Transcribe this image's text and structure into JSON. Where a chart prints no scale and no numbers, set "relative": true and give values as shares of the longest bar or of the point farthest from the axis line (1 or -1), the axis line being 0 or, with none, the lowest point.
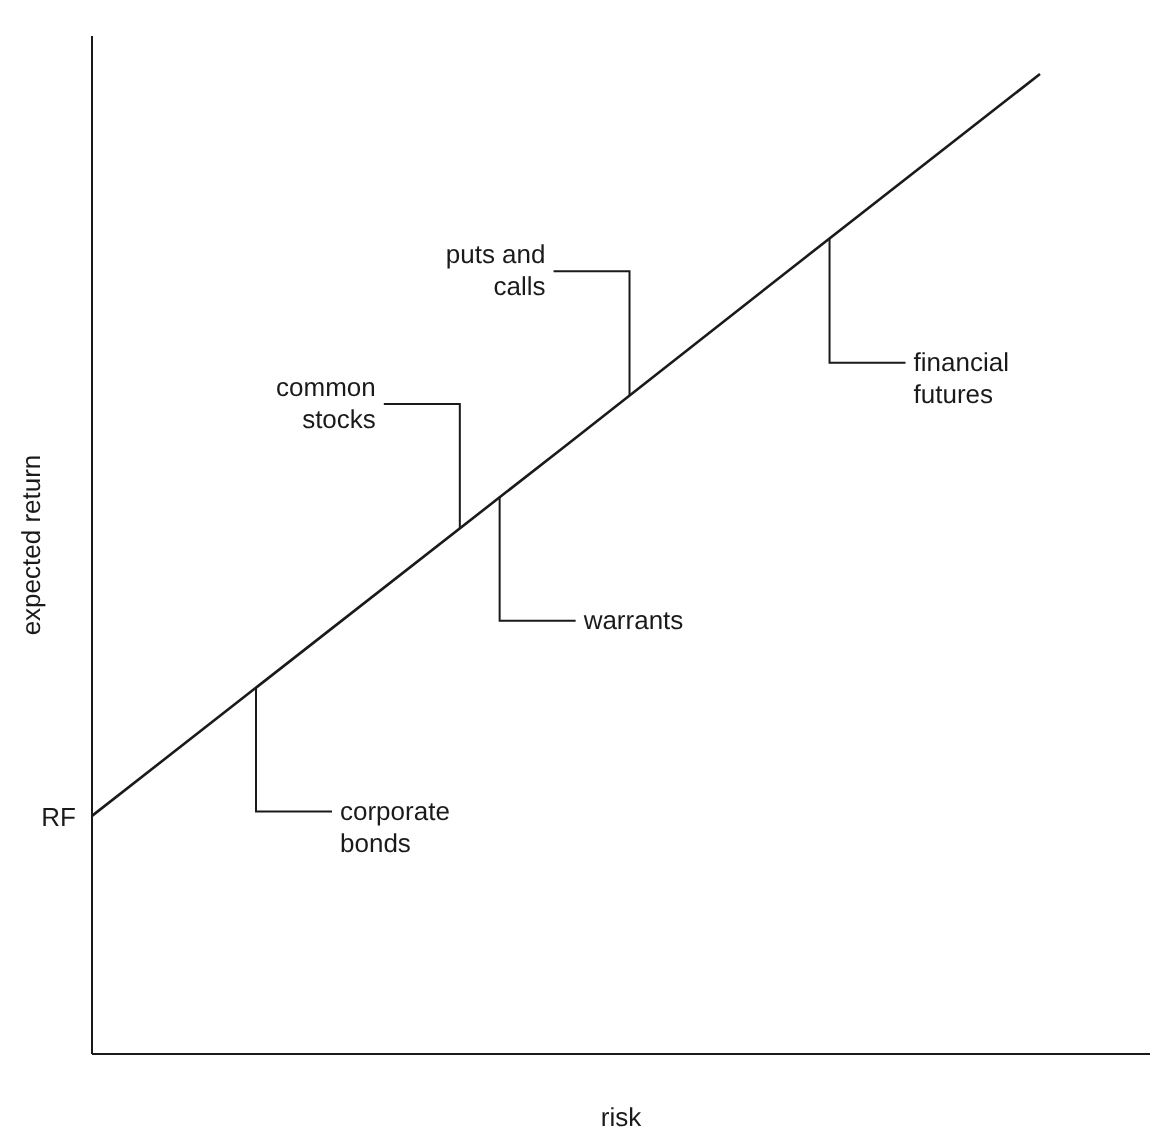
{
  "chart_data": {
    "type": "line",
    "relative": true,
    "xlabel": "risk",
    "ylabel": "expected return",
    "categories": [
      null,
      null,
      null,
      null,
      null
    ],
    "series": [
      {
        "color": "#1a1a1a",
        "values": [
          0.243,
          0.432,
          0.621,
          0.811,
          1
        ]
      }
    ],
    "marker": "none",
    "line_style": "solid",
    "annotations": [
      "RF",
      "corporate bonds",
      "common stocks",
      "warrants",
      "puts and calls",
      "financial futures"
    ]
  }
}
